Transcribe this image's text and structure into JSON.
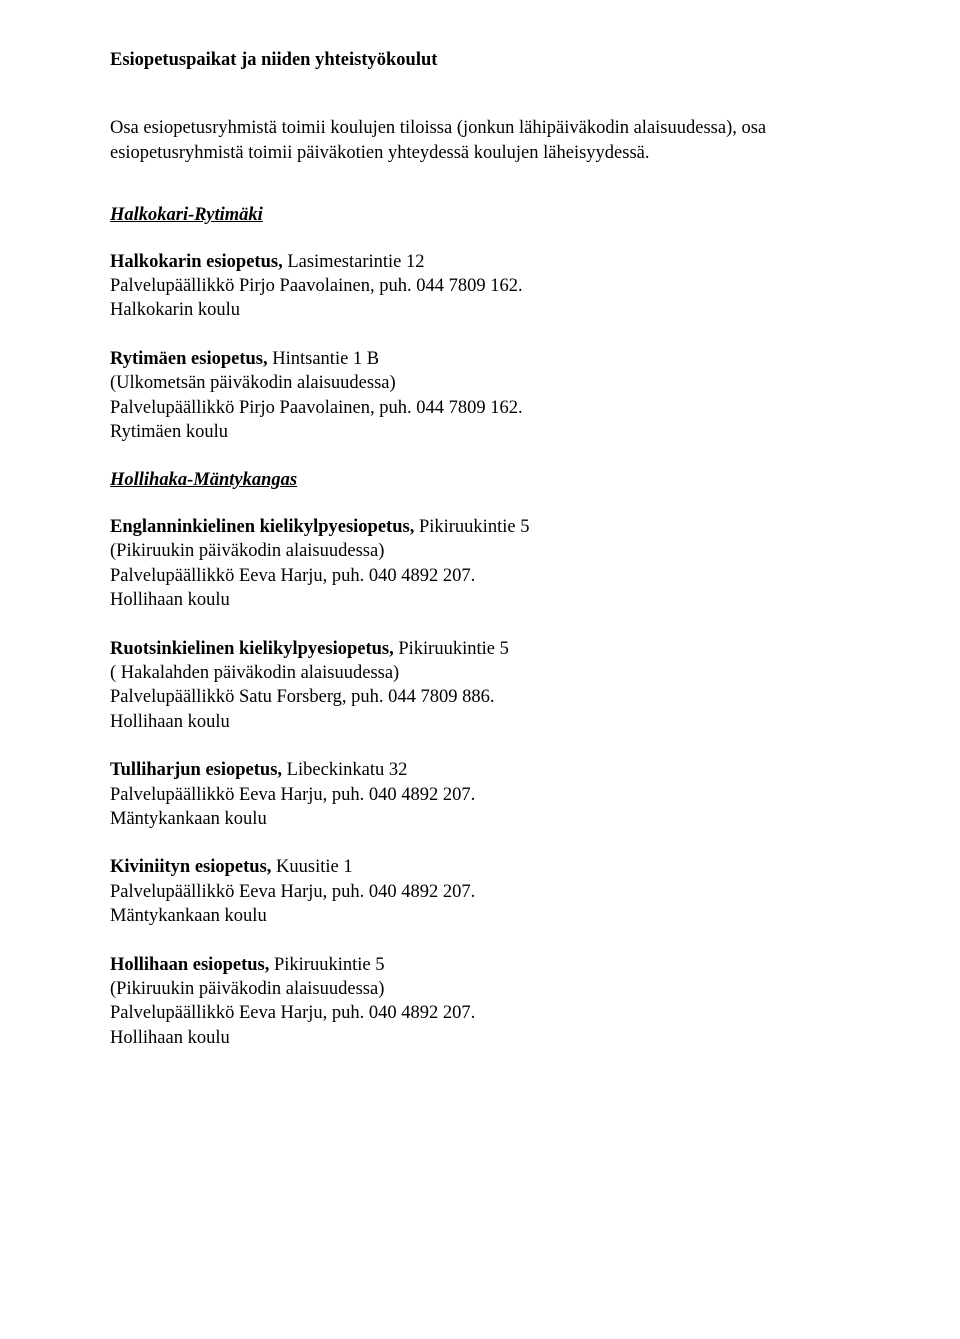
{
  "title": "Esiopetuspaikat ja niiden yhteistyökoulut",
  "intro": "Osa esiopetusryhmistä toimii koulujen tiloissa (jonkun lähipäiväkodin alaisuudessa), osa esiopetusryhmistä toimii päiväkotien yhteydessä koulujen läheisyydessä.",
  "sections": [
    {
      "header": "Halkokari-Rytimäki",
      "entries": [
        {
          "name_bold": "Halkokarin esiopetus,",
          "name_rest": " Lasimestarintie 12",
          "lines": [
            "Palvelupäällikkö Pirjo Paavolainen, puh. 044 7809 162.",
            "Halkokarin koulu"
          ]
        },
        {
          "name_bold": "Rytimäen esiopetus,",
          "name_rest": "  Hintsantie 1 B",
          "lines": [
            "(Ulkometsän päiväkodin alaisuudessa)",
            "Palvelupäällikkö Pirjo Paavolainen, puh. 044 7809 162.",
            "Rytimäen koulu"
          ]
        }
      ]
    },
    {
      "header": "Hollihaka-Mäntykangas",
      "entries": [
        {
          "name_bold": "Englanninkielinen kielikylpyesiopetus,",
          "name_rest": " Pikiruukintie 5",
          "lines": [
            "(Pikiruukin päiväkodin alaisuudessa)",
            "Palvelupäällikkö Eeva Harju, puh. 040 4892 207.",
            "Hollihaan koulu"
          ]
        },
        {
          "name_bold": "Ruotsinkielinen kielikylpyesiopetus,",
          "name_rest": " Pikiruukintie 5",
          "lines": [
            "( Hakalahden päiväkodin alaisuudessa)",
            "Palvelupäällikkö Satu Forsberg, puh. 044 7809 886.",
            "Hollihaan koulu"
          ]
        },
        {
          "name_bold": "Tulliharjun esiopetus,",
          "name_rest": " Libeckinkatu 32",
          "lines": [
            "Palvelupäällikkö Eeva Harju, puh. 040 4892 207.",
            "Mäntykankaan koulu"
          ]
        },
        {
          "name_bold": "Kiviniityn esiopetus,",
          "name_rest": " Kuusitie 1",
          "lines": [
            "Palvelupäällikkö Eeva Harju, puh. 040 4892 207.",
            "Mäntykankaan koulu"
          ]
        },
        {
          "name_bold": "Hollihaan esiopetus,",
          "name_rest": " Pikiruukintie 5",
          "lines": [
            "(Pikiruukin päiväkodin alaisuudessa)",
            "Palvelupäällikkö Eeva Harju, puh. 040 4892 207.",
            "Hollihaan koulu"
          ]
        }
      ]
    }
  ]
}
